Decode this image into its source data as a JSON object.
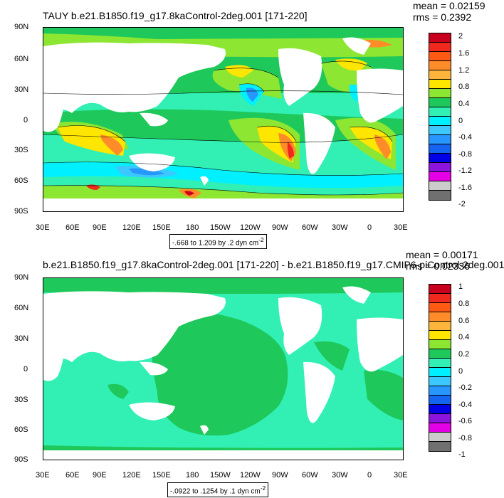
{
  "panels": [
    {
      "title": "TAUY b.e21.B1850.f19_g17.8kaControl-2deg.001 [171-220]",
      "mean": "mean = 0.02159",
      "rms": "rms = 0.2392",
      "lat_ticks": [
        "90N",
        "60N",
        "30N",
        "0",
        "30S",
        "60S",
        "90S"
      ],
      "lon_ticks": [
        "30E",
        "60E",
        "90E",
        "120E",
        "150E",
        "180",
        "150W",
        "120W",
        "90W",
        "60W",
        "30W",
        "0",
        "30E"
      ],
      "range_note": "-.668 to 1.209 by .2 dyn cm",
      "range_unit_exp": "-2",
      "colorbar_labels": [
        "2",
        "1.6",
        "1.2",
        "0.8",
        "0.4",
        "0",
        "-0.4",
        "-0.8",
        "-1.2",
        "-1.6",
        "-2"
      ]
    },
    {
      "title": "b.e21.B1850.f19_g17.8kaControl-2deg.001 [171-220] - b.e21.B1850.f19_g17.CMIP6-piControl-2deg.001",
      "mean": "mean = 0.00171",
      "rms": "rms = 0.02336",
      "lat_ticks": [
        "90N",
        "60N",
        "30N",
        "0",
        "30S",
        "60S",
        "90S"
      ],
      "lon_ticks": [
        "30E",
        "60E",
        "90E",
        "120E",
        "150E",
        "180",
        "150W",
        "120W",
        "90W",
        "60W",
        "30W",
        "0",
        "30E"
      ],
      "range_note": "-.0922 to .1254 by .1 dyn cm",
      "range_unit_exp": "-2",
      "colorbar_labels": [
        "1",
        "0.8",
        "0.6",
        "0.4",
        "0.2",
        "0",
        "-0.2",
        "-0.4",
        "-0.6",
        "-0.8",
        "-1"
      ]
    }
  ],
  "colorbar_colors": [
    "#c8001e",
    "#f0281e",
    "#ff5a14",
    "#ff8c28",
    "#ffb43c",
    "#ffe600",
    "#8ce632",
    "#1ec85a",
    "#32f0b4",
    "#00f0ff",
    "#3cc8ff",
    "#2896ff",
    "#1464f0",
    "#0000e6",
    "#8c14dc",
    "#e600e6",
    "#cccccc",
    "#707070"
  ]
}
